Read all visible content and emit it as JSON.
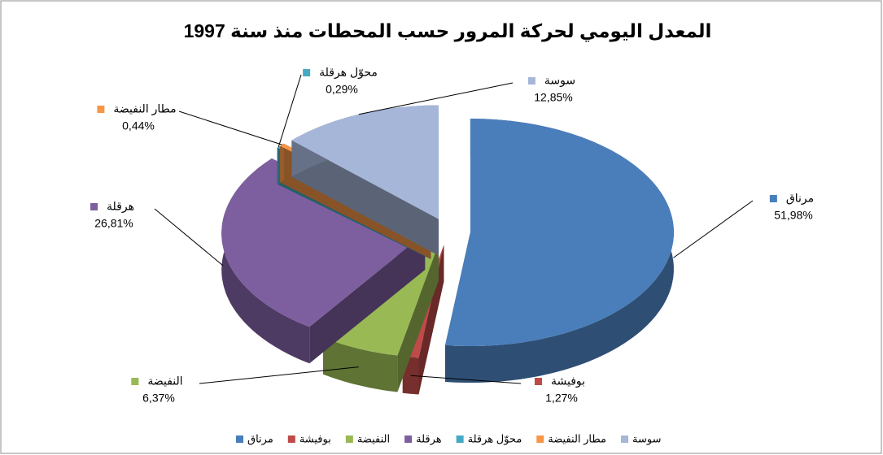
{
  "chart_data": {
    "type": "pie",
    "title": "المعدل اليومي لحركة المرور حسب المحطات منذ سنة 1997",
    "categories": [
      "مرناق",
      "بوفيشة",
      "النفيضة",
      "هرقلة",
      "محوّل هرقلة",
      "مطار النفيضة",
      "سوسة"
    ],
    "values": [
      51.98,
      1.27,
      6.37,
      26.81,
      0.29,
      0.44,
      12.85
    ],
    "value_labels": [
      "51,98%",
      "1,27%",
      "6,37%",
      "26,81%",
      "0,29%",
      "0,44%",
      "12,85%"
    ],
    "colors": [
      "#4a7ebb",
      "#be4b48",
      "#98b954",
      "#7d5fa0",
      "#46aac5",
      "#f79646",
      "#a5b6d9"
    ],
    "legend": "bottom"
  }
}
